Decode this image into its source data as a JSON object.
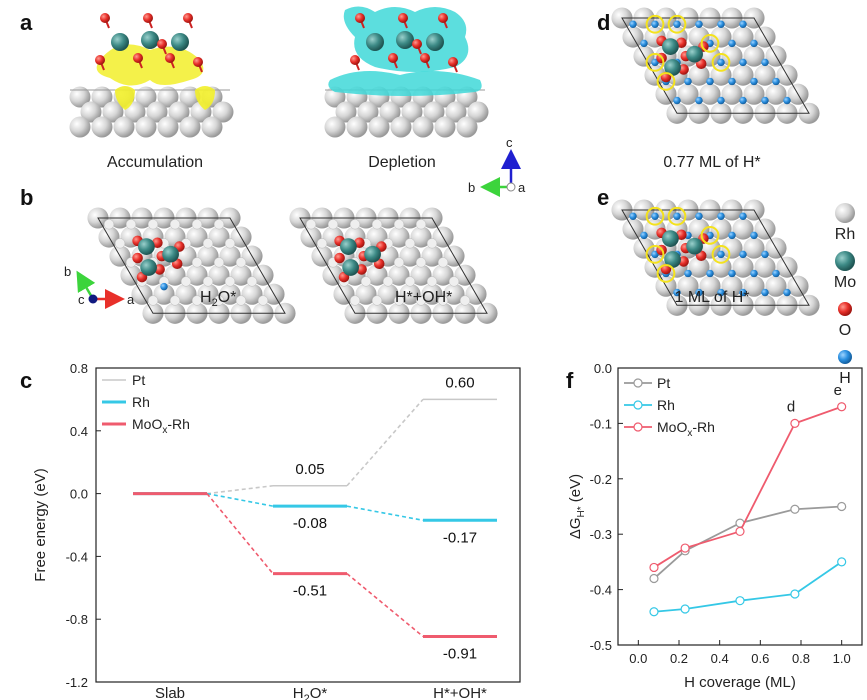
{
  "panels": {
    "a": {
      "letter": "a",
      "accumulation": "Accumulation",
      "depletion": "Depletion"
    },
    "b": {
      "letter": "b",
      "left_label": "H2O*",
      "right_label": "H*+OH*"
    },
    "d": {
      "letter": "d",
      "caption": "0.77 ML of H*"
    },
    "e": {
      "letter": "e",
      "caption": "1 ML of H*"
    }
  },
  "axes_glyphs": {
    "a_c": "c",
    "a_b": "b",
    "a_a": "a",
    "b_b": "b",
    "b_c": "c",
    "b_a": "a"
  },
  "atom_legend": [
    {
      "label": "Rh",
      "color": "#cfcfcf"
    },
    {
      "label": "Mo",
      "color": "#3d8a86"
    },
    {
      "label": "O",
      "color": "#e8302a"
    },
    {
      "label": "H",
      "color": "#2a8fe0"
    }
  ],
  "colors": {
    "pt": "#c8c8c8",
    "rh": "#35c8e6",
    "moox": "#ef5b6e",
    "rh_atom": "#cfcfcf",
    "mo_atom": "#3d8a86",
    "o_atom": "#e8302a",
    "h_atom": "#2a8fe0",
    "accum": "#f2ef2a",
    "depl": "#3fd8d8",
    "ring": "#f4e21d"
  },
  "chart_data": [
    {
      "panel": "c",
      "type": "line",
      "subtype": "free-energy diagram",
      "ylabel": "Free energy (eV)",
      "categories": [
        "Slab",
        "H2O*",
        "H*+OH*"
      ],
      "ylim": [
        -1.2,
        0.8
      ],
      "yticks": [
        "0.8",
        "0.4",
        "0.0",
        "-0.4",
        "-0.8",
        "-1.2"
      ],
      "series": [
        {
          "name": "Pt",
          "values": [
            0.0,
            0.05,
            0.6
          ],
          "labels": [
            "",
            "0.05",
            "0.60"
          ]
        },
        {
          "name": "Rh",
          "values": [
            0.0,
            -0.08,
            -0.17
          ],
          "labels": [
            "",
            "-0.08",
            "-0.17"
          ]
        },
        {
          "name": "MoOx-Rh",
          "values": [
            0.0,
            -0.51,
            -0.91
          ],
          "labels": [
            "",
            "-0.51",
            "-0.91"
          ]
        }
      ],
      "legend": "top-left"
    },
    {
      "panel": "f",
      "type": "line",
      "xlabel": "H coverage (ML)",
      "ylabel": "ΔGH* (eV)",
      "xlim": [
        -0.1,
        1.1
      ],
      "ylim": [
        -0.5,
        0.0
      ],
      "xticks": [
        "0.0",
        "0.2",
        "0.4",
        "0.6",
        "0.8",
        "1.0"
      ],
      "yticks": [
        "0.0",
        "-0.1",
        "-0.2",
        "-0.3",
        "-0.4",
        "-0.5"
      ],
      "series": [
        {
          "name": "Pt",
          "x": [
            0.077,
            0.23,
            0.5,
            0.77,
            1.0
          ],
          "y": [
            -0.38,
            -0.33,
            -0.28,
            -0.255,
            -0.25
          ]
        },
        {
          "name": "Rh",
          "x": [
            0.077,
            0.23,
            0.5,
            0.77,
            1.0
          ],
          "y": [
            -0.44,
            -0.435,
            -0.42,
            -0.408,
            -0.35
          ]
        },
        {
          "name": "MoOx-Rh",
          "x": [
            0.077,
            0.23,
            0.5,
            0.77,
            1.0
          ],
          "y": [
            -0.36,
            -0.325,
            -0.295,
            -0.1,
            -0.07
          ]
        }
      ],
      "annotations": [
        {
          "text": "d",
          "x": 0.77
        },
        {
          "text": "e",
          "x": 1.0
        }
      ],
      "legend": "top-left"
    }
  ]
}
